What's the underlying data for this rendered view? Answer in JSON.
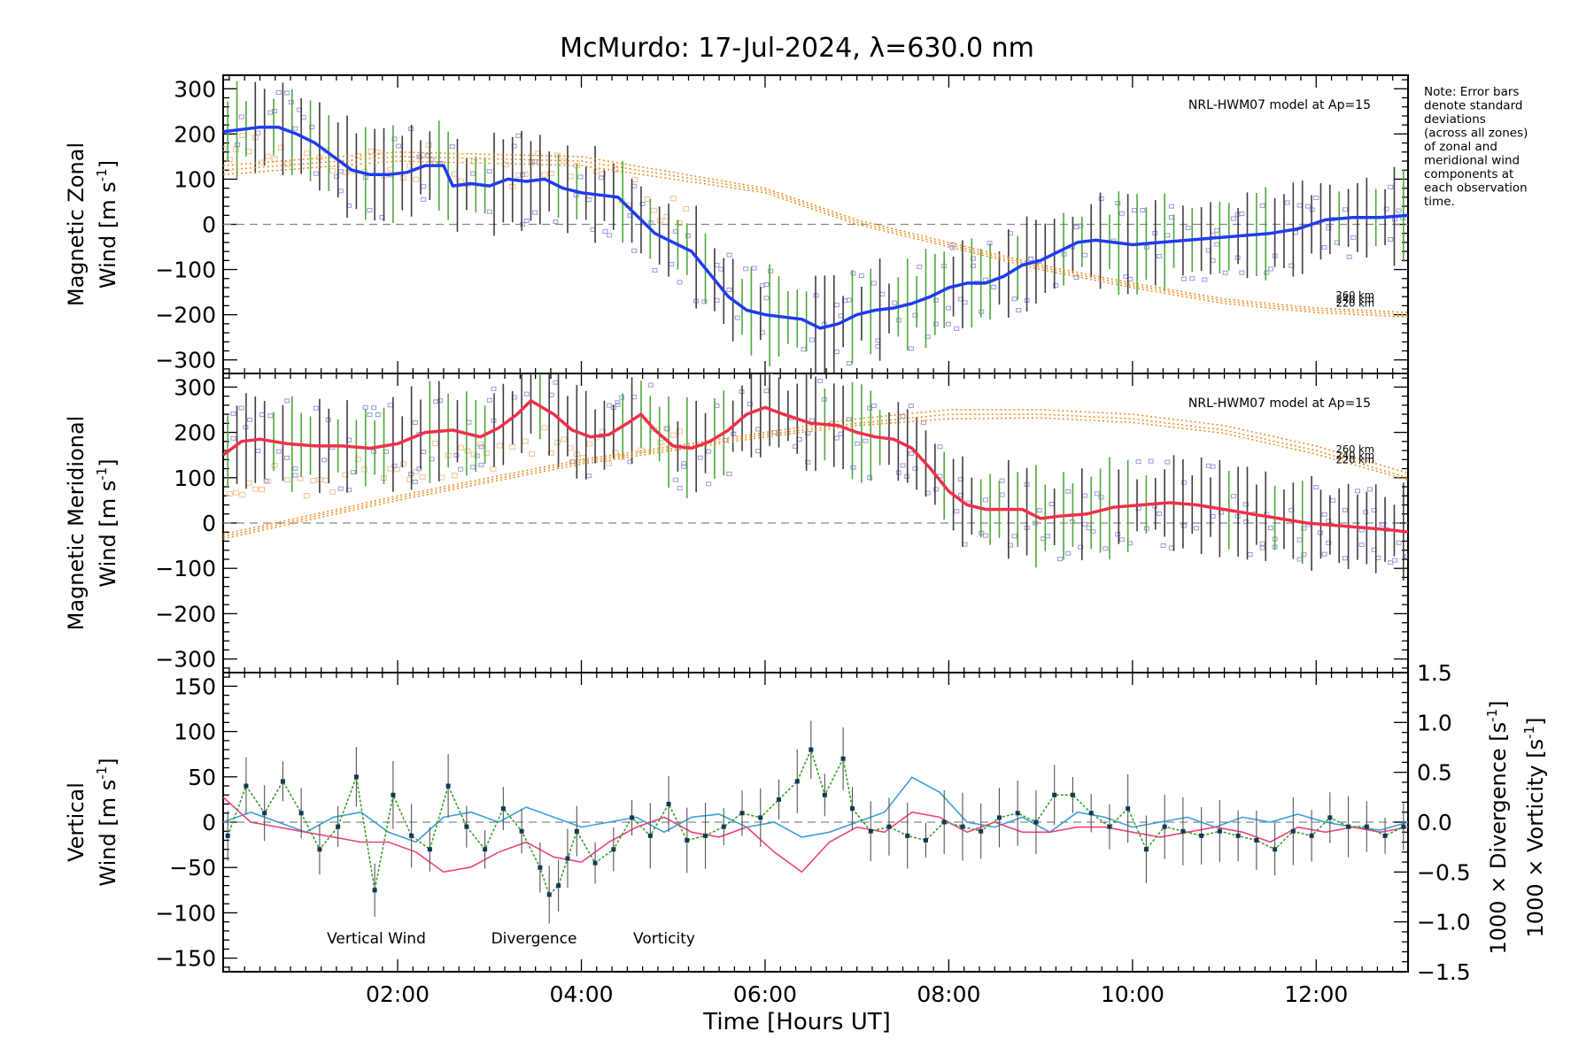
{
  "title": "McMurdo: 17-Jul-2024, λ=630.0 nm",
  "note_lines": [
    "Note: Error bars",
    "denote standard",
    "deviations",
    "(across all zones)",
    "of zonal and",
    "meridional wind",
    "components at",
    "each observation",
    "time."
  ],
  "colors": {
    "zonal": "#1f3cf0",
    "meridional": "#f0304a",
    "model": "#f08a1e",
    "vertical": "#3aa028",
    "divergence": "#3aa0d8",
    "vorticity": "#f04080",
    "scatter": "#9999dd",
    "scatter_model": "#f5c090",
    "errorbar": "#2a2a2a"
  },
  "x_axis": {
    "label": "Time [Hours UT]",
    "range_hours": [
      0.1,
      13.0
    ],
    "ticks": [
      2,
      4,
      6,
      8,
      10,
      12
    ],
    "tick_labels": [
      "02:00",
      "04:00",
      "06:00",
      "08:00",
      "10:00",
      "12:00"
    ]
  },
  "chart_data": [
    {
      "type": "line",
      "name": "zonal",
      "ylabel_line1": "Magnetic Zonal",
      "ylabel_line2": "Wind [m s",
      "ylabel_sup": "-1",
      "ylabel_end": "]",
      "ylim": [
        -330,
        330
      ],
      "yticks": [
        -300,
        -200,
        -100,
        0,
        100,
        200,
        300
      ],
      "model_label": "NRL-HWM07 model at Ap=15",
      "altitude_labels": [
        "260 km",
        "240 km",
        "220 km"
      ],
      "x": [
        0.1,
        0.3,
        0.5,
        0.7,
        0.9,
        1.1,
        1.3,
        1.5,
        1.7,
        1.9,
        2.1,
        2.3,
        2.5,
        2.6,
        2.8,
        3.0,
        3.2,
        3.4,
        3.6,
        3.8,
        4.0,
        4.2,
        4.4,
        4.6,
        4.8,
        5.0,
        5.2,
        5.4,
        5.6,
        5.8,
        6.0,
        6.2,
        6.4,
        6.6,
        6.8,
        7.0,
        7.2,
        7.4,
        7.6,
        7.8,
        8.0,
        8.2,
        8.4,
        8.6,
        8.8,
        9.0,
        9.2,
        9.4,
        9.6,
        9.8,
        10.0,
        10.3,
        10.6,
        10.9,
        11.2,
        11.5,
        11.8,
        12.1,
        12.4,
        12.7,
        13.0
      ],
      "values": [
        205,
        210,
        215,
        215,
        200,
        180,
        150,
        120,
        110,
        110,
        115,
        130,
        130,
        85,
        90,
        85,
        100,
        95,
        100,
        80,
        70,
        65,
        60,
        20,
        -20,
        -40,
        -60,
        -110,
        -160,
        -190,
        -200,
        -205,
        -210,
        -230,
        -220,
        -200,
        -190,
        -185,
        -175,
        -160,
        -140,
        -130,
        -130,
        -115,
        -90,
        -80,
        -60,
        -40,
        -35,
        -40,
        -45,
        -40,
        -35,
        -30,
        -25,
        -20,
        -10,
        10,
        15,
        15,
        20
      ],
      "model_curves": [
        {
          "name": "260 km",
          "x": [
            0.1,
            2,
            4,
            6,
            7,
            8,
            9,
            10,
            11,
            12,
            13
          ],
          "values": [
            130,
            160,
            150,
            80,
            10,
            -40,
            -90,
            -130,
            -165,
            -185,
            -195
          ]
        },
        {
          "name": "240 km",
          "x": [
            0.1,
            2,
            4,
            6,
            7,
            8,
            9,
            10,
            11,
            12,
            13
          ],
          "values": [
            120,
            150,
            140,
            75,
            5,
            -45,
            -95,
            -135,
            -170,
            -190,
            -200
          ]
        },
        {
          "name": "220 km",
          "x": [
            0.1,
            2,
            4,
            6,
            7,
            8,
            9,
            10,
            11,
            12,
            13
          ],
          "values": [
            110,
            140,
            130,
            70,
            0,
            -50,
            -100,
            -140,
            -175,
            -195,
            -205
          ]
        }
      ]
    },
    {
      "type": "line",
      "name": "meridional",
      "ylabel_line1": "Magnetic Meridional",
      "ylabel_line2": "Wind [m s",
      "ylabel_sup": "-1",
      "ylabel_end": "]",
      "ylim": [
        -330,
        330
      ],
      "yticks": [
        -300,
        -200,
        -100,
        0,
        100,
        200,
        300
      ],
      "model_label": "NRL-HWM07 model at Ap=15",
      "altitude_labels": [
        "260 km",
        "240 km",
        "220 km"
      ],
      "x": [
        0.1,
        0.3,
        0.5,
        0.8,
        1.1,
        1.4,
        1.7,
        2.0,
        2.3,
        2.6,
        2.9,
        3.1,
        3.3,
        3.45,
        3.7,
        3.9,
        4.1,
        4.3,
        4.5,
        4.65,
        4.8,
        5.0,
        5.2,
        5.4,
        5.6,
        5.8,
        6.0,
        6.2,
        6.5,
        6.8,
        7.0,
        7.2,
        7.4,
        7.6,
        7.8,
        8.0,
        8.2,
        8.4,
        8.6,
        8.8,
        9.0,
        9.2,
        9.5,
        9.8,
        10.1,
        10.4,
        10.7,
        11.0,
        11.3,
        11.6,
        11.9,
        12.2,
        12.5,
        12.8,
        13.0
      ],
      "values": [
        150,
        180,
        185,
        175,
        170,
        170,
        165,
        175,
        200,
        205,
        190,
        210,
        240,
        270,
        240,
        205,
        190,
        195,
        220,
        240,
        205,
        170,
        165,
        180,
        205,
        240,
        255,
        240,
        220,
        215,
        200,
        190,
        185,
        165,
        120,
        70,
        40,
        30,
        30,
        30,
        10,
        15,
        20,
        35,
        40,
        45,
        40,
        30,
        20,
        10,
        0,
        -5,
        -10,
        -15,
        -20
      ],
      "model_curves": [
        {
          "name": "260 km",
          "x": [
            0.1,
            2,
            4,
            6,
            7,
            8,
            9,
            10,
            11,
            12,
            13
          ],
          "values": [
            -25,
            60,
            140,
            200,
            230,
            250,
            250,
            240,
            215,
            170,
            110
          ]
        },
        {
          "name": "240 km",
          "x": [
            0.1,
            2,
            4,
            6,
            7,
            8,
            9,
            10,
            11,
            12,
            13
          ],
          "values": [
            -30,
            55,
            135,
            195,
            220,
            240,
            240,
            230,
            205,
            160,
            100
          ]
        },
        {
          "name": "220 km",
          "x": [
            0.1,
            2,
            4,
            6,
            7,
            8,
            9,
            10,
            11,
            12,
            13
          ],
          "values": [
            -35,
            50,
            130,
            190,
            215,
            230,
            232,
            222,
            198,
            152,
            95
          ]
        }
      ]
    },
    {
      "type": "line",
      "name": "vertical",
      "ylabel_line1": "Vertical",
      "ylabel_line2": "Wind [m s",
      "ylabel_sup": "-1",
      "ylabel_end": "]",
      "ylim": [
        -165,
        165
      ],
      "yticks": [
        -150,
        -100,
        -50,
        0,
        50,
        100,
        150
      ],
      "y2lim": [
        -1.5,
        1.5
      ],
      "y2ticks": [
        -1.5,
        -1.0,
        -0.5,
        0.0,
        0.5,
        1.0,
        1.5
      ],
      "y2tick_labels": [
        "−1.5",
        "−1.0",
        "−0.5",
        "0.0",
        "0.5",
        "1.0",
        "1.5"
      ],
      "y2label_div": "1000 × Divergence [s",
      "y2label_vort": "1000 × Vorticity [s",
      "legend": [
        "Vertical Wind",
        "Divergence",
        "Vorticity"
      ],
      "vertical_wind": {
        "x": [
          0.15,
          0.35,
          0.55,
          0.75,
          0.95,
          1.15,
          1.35,
          1.55,
          1.75,
          1.95,
          2.15,
          2.35,
          2.55,
          2.75,
          2.95,
          3.15,
          3.35,
          3.55,
          3.65,
          3.75,
          3.85,
          3.95,
          4.15,
          4.35,
          4.55,
          4.75,
          4.95,
          5.15,
          5.35,
          5.55,
          5.75,
          5.95,
          6.15,
          6.35,
          6.5,
          6.65,
          6.85,
          6.95,
          7.15,
          7.35,
          7.55,
          7.75,
          7.95,
          8.15,
          8.35,
          8.55,
          8.75,
          8.95,
          9.15,
          9.35,
          9.55,
          9.75,
          9.95,
          10.15,
          10.35,
          10.55,
          10.75,
          10.95,
          11.15,
          11.35,
          11.55,
          11.75,
          11.95,
          12.15,
          12.35,
          12.55,
          12.75,
          12.95
        ],
        "values": [
          -15,
          40,
          10,
          45,
          10,
          -30,
          -5,
          50,
          -75,
          30,
          -15,
          -30,
          40,
          -5,
          -30,
          15,
          -10,
          -50,
          -80,
          -70,
          -40,
          -10,
          -45,
          -30,
          5,
          -15,
          20,
          -20,
          -15,
          -5,
          10,
          5,
          25,
          45,
          80,
          30,
          70,
          15,
          -10,
          -5,
          -15,
          -20,
          0,
          -5,
          -10,
          5,
          10,
          0,
          30,
          30,
          10,
          -5,
          15,
          -30,
          -5,
          -10,
          -15,
          -10,
          -15,
          -20,
          -30,
          -10,
          -15,
          5,
          -5,
          -5,
          -15,
          -5
        ]
      },
      "divergence": {
        "x": [
          0.1,
          0.4,
          0.7,
          1.0,
          1.3,
          1.6,
          1.9,
          2.2,
          2.5,
          2.8,
          3.1,
          3.4,
          3.7,
          4.0,
          4.3,
          4.6,
          4.9,
          5.2,
          5.5,
          5.8,
          6.1,
          6.4,
          6.7,
          7.0,
          7.3,
          7.6,
          7.9,
          8.2,
          8.5,
          8.8,
          9.1,
          9.4,
          9.7,
          10.0,
          10.3,
          10.6,
          10.9,
          11.2,
          11.5,
          11.8,
          12.1,
          12.4,
          12.7,
          13.0
        ],
        "values": [
          0.0,
          0.1,
          0.0,
          -0.1,
          0.05,
          0.1,
          -0.1,
          -0.2,
          0.05,
          0.1,
          0.0,
          0.15,
          0.05,
          -0.05,
          0.0,
          0.05,
          -0.1,
          0.05,
          0.08,
          -0.05,
          0.0,
          -0.15,
          -0.1,
          0.0,
          0.1,
          0.45,
          0.3,
          0.0,
          -0.05,
          0.05,
          -0.1,
          0.1,
          0.05,
          -0.05,
          0.0,
          0.05,
          -0.05,
          0.05,
          0.0,
          0.08,
          0.0,
          -0.05,
          -0.08,
          0.0
        ]
      },
      "vorticity": {
        "x": [
          0.1,
          0.4,
          0.7,
          1.0,
          1.3,
          1.6,
          1.9,
          2.2,
          2.5,
          2.8,
          3.1,
          3.4,
          3.7,
          4.0,
          4.3,
          4.6,
          4.9,
          5.2,
          5.5,
          5.8,
          6.1,
          6.4,
          6.7,
          7.0,
          7.3,
          7.6,
          7.9,
          8.2,
          8.5,
          8.8,
          9.1,
          9.4,
          9.7,
          10.0,
          10.3,
          10.6,
          10.9,
          11.2,
          11.5,
          11.8,
          12.1,
          12.4,
          12.7,
          13.0
        ],
        "values": [
          0.25,
          0.0,
          -0.05,
          -0.1,
          -0.15,
          -0.2,
          -0.2,
          -0.3,
          -0.5,
          -0.45,
          -0.3,
          -0.2,
          -0.35,
          -0.4,
          -0.2,
          -0.05,
          0.05,
          -0.1,
          -0.15,
          -0.05,
          -0.3,
          -0.5,
          -0.2,
          -0.05,
          -0.1,
          0.1,
          0.05,
          -0.1,
          0.0,
          -0.1,
          -0.1,
          -0.05,
          -0.05,
          -0.1,
          -0.15,
          -0.1,
          -0.05,
          -0.1,
          -0.2,
          -0.05,
          -0.1,
          -0.05,
          -0.1,
          -0.05
        ]
      }
    }
  ]
}
